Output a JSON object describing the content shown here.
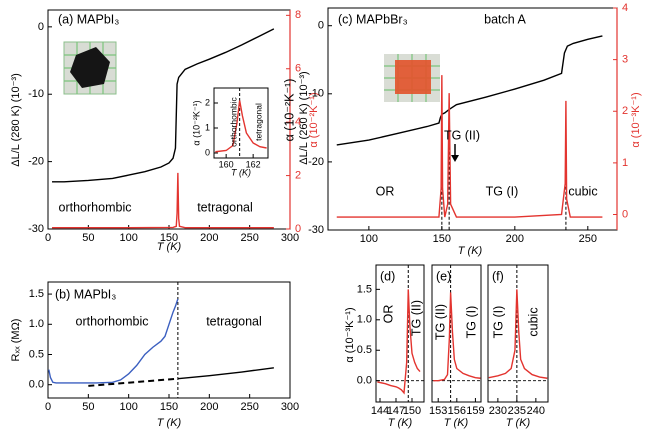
{
  "chart_data": [
    {
      "type": "line",
      "title": "(a) MAPbI₃",
      "xlabel": "T (K)",
      "ylabel": "ΔL/L (280 K) (10⁻³)",
      "y2label": "α (10⁻²K⁻¹)",
      "y2color": "#e3342f",
      "xlim": [
        0,
        300
      ],
      "xticks": [
        0,
        50,
        100,
        150,
        200,
        250,
        300
      ],
      "ylim": [
        -30,
        2.5
      ],
      "yticks": [
        -30,
        -20,
        -10,
        0
      ],
      "y2lim": [
        0,
        8.2
      ],
      "y2ticks": [
        0,
        2,
        4,
        6,
        8
      ],
      "annotations": [
        "orthorhombic",
        "tetragonal"
      ],
      "series": [
        {
          "color": "#000000",
          "x": [
            5,
            20,
            50,
            80,
            100,
            120,
            140,
            150,
            155,
            158,
            160,
            162,
            170,
            185,
            200,
            220,
            240,
            260,
            280
          ],
          "values": [
            -23,
            -23,
            -22.8,
            -22.5,
            -22,
            -21.5,
            -20.8,
            -20.2,
            -19.5,
            -18,
            -8.5,
            -7.5,
            -6.3,
            -5.5,
            -4.8,
            -3.8,
            -2.7,
            -1.5,
            -0.3
          ]
        },
        {
          "color": "#e3342f",
          "axis": "y2",
          "x": [
            5,
            100,
            155,
            159,
            160,
            161,
            162,
            163,
            170,
            280
          ],
          "values": [
            0.05,
            0.05,
            0.06,
            0.1,
            0.6,
            2.1,
            0.4,
            0.1,
            0.05,
            0.05
          ]
        }
      ]
    },
    {
      "type": "line",
      "xlabel": "T (K)",
      "ylabel": "α (10⁻²K⁻¹)",
      "xlim": [
        159.1,
        163.1
      ],
      "xticks": [
        160,
        162
      ],
      "ylim": [
        -0.2,
        2.6
      ],
      "yticks": [
        0,
        1,
        2
      ],
      "annotations": [
        "orthorhombic",
        "tetragonal"
      ],
      "vlines": [
        161
      ],
      "series": [
        {
          "color": "#e3342f",
          "x": [
            159.2,
            160,
            160.5,
            160.8,
            161,
            161.2,
            161.5,
            162,
            162.5,
            163
          ],
          "values": [
            0.05,
            0.1,
            0.3,
            1.2,
            2.1,
            1.5,
            0.8,
            0.4,
            0.25,
            0.2
          ]
        }
      ]
    },
    {
      "type": "line",
      "title": "(b) MAPbI₃",
      "xlabel": "T (K)",
      "ylabel": "Rₓₓ (MΩ)",
      "xlim": [
        0,
        300
      ],
      "xticks": [
        0,
        50,
        100,
        150,
        200,
        250,
        300
      ],
      "ylim": [
        -0.22,
        1.7
      ],
      "yticks": [
        {
          "value": 0,
          "label": "0.0"
        },
        0.5,
        {
          "value": 1,
          "label": "1.0"
        },
        1.5
      ],
      "annotations": [
        "orthorhombic",
        "tetragonal"
      ],
      "vlines": [
        161
      ],
      "series": [
        {
          "color": "#3b5fc0",
          "x": [
            1,
            3,
            6,
            10,
            20,
            40,
            60,
            80,
            90,
            100,
            110,
            120,
            130,
            140,
            145,
            150,
            155,
            158,
            160,
            161
          ],
          "values": [
            0.25,
            0.12,
            0.04,
            0.03,
            0.03,
            0.03,
            0.03,
            0.04,
            0.08,
            0.18,
            0.32,
            0.5,
            0.62,
            0.72,
            0.8,
            1.0,
            1.2,
            1.3,
            1.38,
            1.42
          ]
        },
        {
          "color": "#000000",
          "style": "dashed",
          "x": [
            50,
            161
          ],
          "values": [
            -0.02,
            0.1
          ]
        },
        {
          "color": "#000000",
          "x": [
            161,
            200,
            240,
            280
          ],
          "values": [
            0.1,
            0.15,
            0.21,
            0.28
          ]
        }
      ]
    },
    {
      "type": "line",
      "title": "(c) MAPbBr₃",
      "xlabel": "T (K)",
      "ylabel": "ΔL/L (260 K) (10⁻³)",
      "y2label": "α (10⁻³K⁻¹)",
      "y2color": "#e3342f",
      "xlim": [
        72,
        270
      ],
      "xticks": [
        100,
        150,
        200,
        250
      ],
      "ylim": [
        -30,
        2.6
      ],
      "yticks": [
        -30,
        -20,
        -10,
        0
      ],
      "y2lim": [
        -0.3,
        4
      ],
      "y2ticks": [
        0,
        1,
        2,
        3,
        4
      ],
      "annotations": [
        "batch A",
        "TG (II)",
        "OR",
        "TG (I)",
        "cubic",
        "α (10⁻²K⁻¹)"
      ],
      "vlines": [
        150,
        155,
        235
      ],
      "series": [
        {
          "color": "#000000",
          "x": [
            78,
            100,
            120,
            140,
            148,
            149,
            150,
            152,
            155,
            160,
            180,
            200,
            220,
            232,
            234,
            236,
            240,
            250,
            260
          ],
          "values": [
            -17.5,
            -16.8,
            -15.8,
            -14.8,
            -14.3,
            -13.5,
            -13,
            -12.8,
            -12.3,
            -11.6,
            -10.5,
            -9.3,
            -8,
            -7,
            -4,
            -3,
            -2.6,
            -2,
            -1.5
          ]
        },
        {
          "color": "#e3342f",
          "axis": "y2",
          "x": [
            78,
            140,
            148,
            149.5,
            150,
            150.5,
            152,
            154,
            155,
            156,
            160,
            200,
            232,
            234.5,
            235,
            235.5,
            238,
            260
          ],
          "values": [
            -0.05,
            -0.05,
            -0.05,
            0.5,
            2.7,
            0.5,
            -0.05,
            0.2,
            2.35,
            0.2,
            -0.05,
            -0.05,
            0,
            0.6,
            2.2,
            0.3,
            -0.05,
            -0.05
          ]
        }
      ]
    },
    {
      "type": "line",
      "title": "(d)",
      "xlabel": "T (K)",
      "ylabel": "α (10⁻³K⁻¹)",
      "xlim": [
        143.25,
        152.25
      ],
      "xticks": [
        144,
        147,
        150
      ],
      "ylim": [
        -0.35,
        1.9
      ],
      "yticks": [
        {
          "value": 0,
          "label": "0.0"
        },
        0.5,
        {
          "value": 1,
          "label": "1.0"
        },
        1.5
      ],
      "annotations": [
        "OR",
        "TG (II)"
      ],
      "vlines": [
        149.3
      ],
      "hlines": [
        0
      ],
      "series": [
        {
          "color": "#e3342f",
          "x": [
            143.5,
            145,
            146,
            147,
            147.5,
            148,
            148.5,
            149,
            149.3,
            149.6,
            150,
            150.5,
            151,
            151.5
          ],
          "values": [
            -0.02,
            -0.05,
            -0.08,
            -0.1,
            -0.12,
            -0.15,
            -0.2,
            0.3,
            1.5,
            0.9,
            0.45,
            0.3,
            0.2,
            0.15
          ]
        }
      ]
    },
    {
      "type": "line",
      "title": "(e)",
      "xlabel": "T (K)",
      "xlim": [
        152,
        159.9
      ],
      "xticks": [
        153,
        156,
        159
      ],
      "ylim": [
        -0.35,
        1.9
      ],
      "annotations": [
        "TG (II)",
        "TG (I)"
      ],
      "vlines": [
        155
      ],
      "hlines": [
        0
      ],
      "series": [
        {
          "color": "#e3342f",
          "x": [
            152.2,
            153,
            154,
            154.5,
            154.8,
            155,
            155.3,
            155.6,
            156,
            157,
            158,
            159,
            159.8
          ],
          "values": [
            0,
            0,
            0.02,
            0.1,
            0.7,
            1.45,
            0.8,
            0.35,
            0.2,
            0.12,
            0.08,
            0.05,
            0.04
          ]
        }
      ]
    },
    {
      "type": "line",
      "title": "(f)",
      "xlabel": "T (K)",
      "xlim": [
        227.4,
        243.2
      ],
      "xticks": [
        230,
        235,
        240
      ],
      "ylim": [
        -0.35,
        1.9
      ],
      "annotations": [
        "TG (I)",
        "cubic"
      ],
      "vlines": [
        235
      ],
      "hlines": [
        0
      ],
      "series": [
        {
          "color": "#e3342f",
          "x": [
            227.6,
            230,
            232,
            233.5,
            234.5,
            235,
            235.5,
            236,
            237,
            239,
            241,
            243
          ],
          "values": [
            0.05,
            0.08,
            0.12,
            0.2,
            0.5,
            1.5,
            0.8,
            0.35,
            0.2,
            0.1,
            0.06,
            0.04
          ]
        }
      ]
    }
  ]
}
